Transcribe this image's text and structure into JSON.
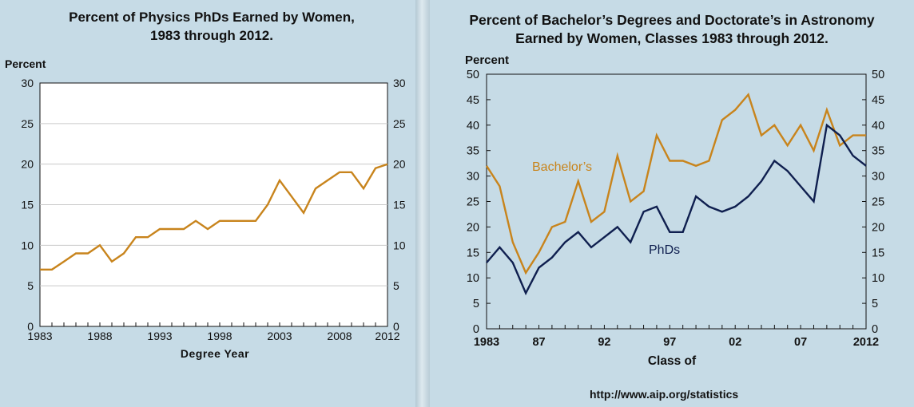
{
  "chart_data": [
    {
      "type": "line",
      "title": "Percent of Physics PhDs Earned by Women,",
      "subtitle": "1983 through 2012.",
      "ylabel": "Percent",
      "xlabel": "Degree Year",
      "xlim": [
        1983,
        2012
      ],
      "ylim": [
        0,
        30
      ],
      "y_ticks": [
        "0",
        "5",
        "10",
        "15",
        "20",
        "25",
        "30"
      ],
      "x_ticks": [
        "1983",
        "1988",
        "1993",
        "1998",
        "2003",
        "2008",
        "2012"
      ],
      "x_tick_values": [
        1983,
        1988,
        1993,
        1998,
        2003,
        2008,
        2012
      ],
      "grid": true,
      "series": [
        {
          "name": "PhDs",
          "color": "#c8841c",
          "x": [
            1983,
            1984,
            1985,
            1986,
            1987,
            1988,
            1989,
            1990,
            1991,
            1992,
            1993,
            1994,
            1995,
            1996,
            1997,
            1998,
            1999,
            2000,
            2001,
            2002,
            2003,
            2004,
            2005,
            2006,
            2007,
            2008,
            2009,
            2010,
            2011,
            2012
          ],
          "values": [
            7,
            7,
            8,
            9,
            9,
            10,
            8,
            9,
            11,
            11,
            12,
            12,
            12,
            13,
            12,
            13,
            13,
            13,
            13,
            15,
            18,
            16,
            14,
            17,
            18,
            19,
            19,
            17,
            19.5,
            20
          ]
        }
      ]
    },
    {
      "type": "line",
      "title": "Percent of Bachelor’s Degrees and Doctorate’s in Astronomy",
      "subtitle": "Earned by Women, Classes 1983 through 2012.",
      "ylabel": "Percent",
      "xlabel": "Class of",
      "xlim": [
        1983,
        2012
      ],
      "ylim": [
        0,
        50
      ],
      "y_ticks": [
        "0",
        "5",
        "10",
        "15",
        "20",
        "25",
        "30",
        "35",
        "40",
        "45",
        "50"
      ],
      "x_ticks": [
        "1983",
        "87",
        "92",
        "97",
        "02",
        "07",
        "2012"
      ],
      "x_tick_values": [
        1983,
        1987,
        1992,
        1997,
        2002,
        2007,
        2012
      ],
      "grid": false,
      "series": [
        {
          "name": "Bachelor’s",
          "color": "#c8841c",
          "x": [
            1983,
            1984,
            1985,
            1986,
            1987,
            1988,
            1989,
            1990,
            1991,
            1992,
            1993,
            1994,
            1995,
            1996,
            1997,
            1998,
            1999,
            2000,
            2001,
            2002,
            2003,
            2004,
            2005,
            2006,
            2007,
            2008,
            2009,
            2010,
            2011,
            2012
          ],
          "values": [
            32,
            28,
            17,
            11,
            15,
            20,
            21,
            29,
            21,
            23,
            34,
            25,
            27,
            38,
            33,
            33,
            32,
            33,
            41,
            43,
            46,
            38,
            40,
            36,
            40,
            35,
            43,
            36,
            38,
            38
          ]
        },
        {
          "name": "PhDs",
          "color": "#0f1f4f",
          "x": [
            1983,
            1984,
            1985,
            1986,
            1987,
            1988,
            1989,
            1990,
            1991,
            1992,
            1993,
            1994,
            1995,
            1996,
            1997,
            1998,
            1999,
            2000,
            2001,
            2002,
            2003,
            2004,
            2005,
            2006,
            2007,
            2008,
            2009,
            2010,
            2011,
            2012
          ],
          "values": [
            13,
            16,
            13,
            7,
            12,
            14,
            17,
            19,
            16,
            18,
            20,
            17,
            23,
            24,
            19,
            19,
            26,
            24,
            23,
            24,
            26,
            29,
            33,
            31,
            28,
            25,
            40,
            38,
            34,
            32
          ]
        }
      ]
    }
  ],
  "source": "http://www.aip.org/statistics"
}
